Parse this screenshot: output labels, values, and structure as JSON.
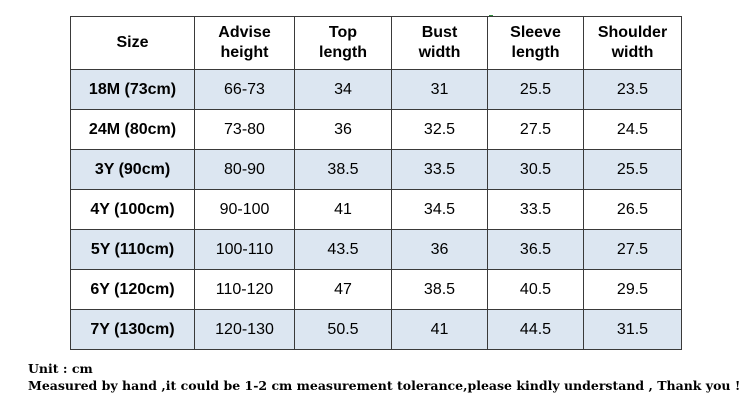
{
  "table": {
    "headers": [
      [
        "Size"
      ],
      [
        "Advise",
        "height"
      ],
      [
        "Top",
        "length"
      ],
      [
        "Bust",
        "width"
      ],
      [
        "Sleeve",
        "length"
      ],
      [
        "Shoulder",
        "width"
      ]
    ],
    "rows": [
      [
        "18M (73cm)",
        "66-73",
        "34",
        "31",
        "25.5",
        "23.5"
      ],
      [
        "24M (80cm)",
        "73-80",
        "36",
        "32.5",
        "27.5",
        "24.5"
      ],
      [
        "3Y (90cm)",
        "80-90",
        "38.5",
        "33.5",
        "30.5",
        "25.5"
      ],
      [
        "4Y (100cm)",
        "90-100",
        "41",
        "34.5",
        "33.5",
        "26.5"
      ],
      [
        "5Y (110cm)",
        "100-110",
        "43.5",
        "36",
        "36.5",
        "27.5"
      ],
      [
        "6Y (120cm)",
        "110-120",
        "47",
        "38.5",
        "40.5",
        "29.5"
      ],
      [
        "7Y (130cm)",
        "120-130",
        "50.5",
        "41",
        "44.5",
        "31.5"
      ]
    ]
  },
  "notes": {
    "unit": "Unit : cm",
    "tolerance": "Measured by hand ,it could be 1-2 cm measurement tolerance,please kindly understand , Thank you !"
  },
  "colors": {
    "stripe": "#dce6f1",
    "border": "#3a3a3a"
  }
}
